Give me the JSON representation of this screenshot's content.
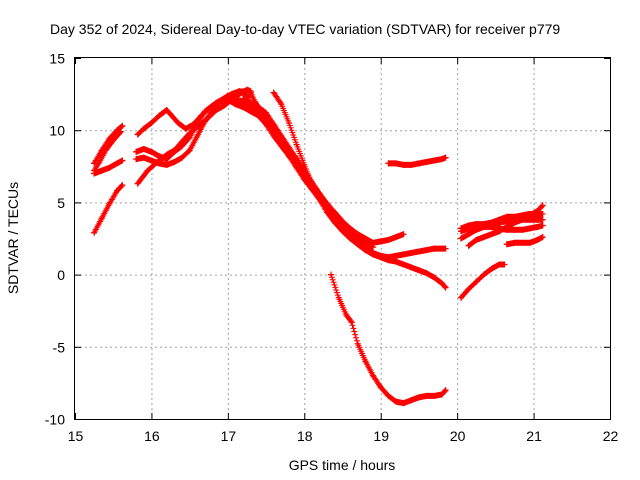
{
  "chart_data": {
    "type": "scatter",
    "title": "Day 352 of 2024, Sidereal Day-to-day VTEC variation (SDTVAR) for receiver p779",
    "xlabel": "GPS time / hours",
    "ylabel": "SDTVAR / TECUs",
    "xlim": [
      15,
      22
    ],
    "ylim": [
      -10,
      15
    ],
    "x_ticks": [
      "15",
      "16",
      "17",
      "18",
      "19",
      "20",
      "21",
      "22"
    ],
    "y_ticks": [
      "15",
      "10",
      "5",
      "0",
      "-5",
      "-10"
    ],
    "grid": true,
    "marker": "plus",
    "color": "#ff0000",
    "series": [
      {
        "name": "s1",
        "x": [
          15.25,
          15.35,
          15.45,
          15.55,
          15.62
        ],
        "y": [
          2.9,
          3.9,
          4.9,
          5.8,
          6.2
        ]
      },
      {
        "name": "s2",
        "x": [
          15.25,
          15.35,
          15.45,
          15.55,
          15.62
        ],
        "y": [
          7.0,
          7.2,
          7.4,
          7.7,
          7.9
        ]
      },
      {
        "name": "s3",
        "x": [
          15.25,
          15.32,
          15.4,
          15.5,
          15.6
        ],
        "y": [
          7.2,
          7.8,
          8.6,
          9.3,
          9.9
        ]
      },
      {
        "name": "s4",
        "x": [
          15.25,
          15.35,
          15.45,
          15.55,
          15.62
        ],
        "y": [
          7.7,
          8.6,
          9.4,
          10.0,
          10.3
        ]
      },
      {
        "name": "s5",
        "x": [
          15.82,
          15.95,
          16.1,
          16.2,
          16.3,
          16.4,
          16.5,
          16.62,
          16.75,
          16.85,
          16.95,
          17.05,
          17.15,
          17.25,
          17.3
        ],
        "y": [
          6.3,
          7.2,
          7.9,
          8.3,
          8.6,
          9.2,
          9.8,
          10.3,
          10.9,
          11.4,
          11.7,
          12.1,
          12.5,
          12.8,
          12.7
        ]
      },
      {
        "name": "s6",
        "x": [
          15.82,
          15.9,
          16.0,
          16.1,
          16.2,
          16.25,
          16.35,
          16.45,
          16.55,
          16.65,
          16.75,
          16.85,
          16.95,
          17.05,
          17.15,
          17.25
        ],
        "y": [
          9.7,
          10.1,
          10.5,
          11.0,
          11.4,
          11.1,
          10.5,
          10.1,
          10.4,
          11.0,
          11.5,
          11.9,
          12.2,
          12.5,
          12.7,
          12.6
        ]
      },
      {
        "name": "s7",
        "x": [
          15.8,
          15.9,
          16.0,
          16.1,
          16.2,
          16.3,
          16.4,
          16.5,
          16.6,
          16.7,
          16.8,
          16.9,
          17.0,
          17.1,
          17.2,
          17.3,
          17.4,
          17.5,
          17.6,
          17.7,
          17.8,
          17.9,
          18.0,
          18.1,
          18.2,
          18.3,
          18.4,
          18.5,
          18.6,
          18.7,
          18.8,
          18.9,
          19.0,
          19.1,
          19.2,
          19.3,
          19.4,
          19.5,
          19.6,
          19.7,
          19.8,
          19.85
        ],
        "y": [
          8.5,
          8.7,
          8.5,
          8.2,
          8.0,
          8.5,
          8.9,
          9.5,
          10.5,
          11.3,
          11.7,
          12.0,
          12.1,
          11.8,
          11.6,
          11.3,
          11.0,
          10.4,
          9.6,
          8.9,
          8.2,
          7.4,
          6.6,
          5.9,
          5.2,
          4.5,
          3.8,
          3.1,
          2.6,
          2.1,
          1.7,
          1.4,
          1.2,
          1.0,
          0.9,
          0.7,
          0.5,
          0.3,
          0.1,
          -0.2,
          -0.6,
          -0.9
        ]
      },
      {
        "name": "s8",
        "x": [
          15.8,
          15.9,
          16.0,
          16.1,
          16.2,
          16.3,
          16.4,
          16.5,
          16.6,
          16.7,
          16.8,
          16.9,
          17.0,
          17.1,
          17.2,
          17.3,
          17.4,
          17.5,
          17.6,
          17.7,
          17.8,
          17.9,
          18.0,
          18.1,
          18.2,
          18.3,
          18.4,
          18.5,
          18.6,
          18.7,
          18.8,
          18.9,
          19.0,
          19.1,
          19.2,
          19.3,
          19.4,
          19.5,
          19.6,
          19.7,
          19.8,
          19.85
        ],
        "y": [
          8.0,
          8.1,
          7.9,
          7.7,
          7.6,
          7.8,
          8.1,
          8.6,
          9.6,
          10.6,
          11.4,
          12.0,
          12.4,
          12.2,
          11.9,
          11.6,
          11.2,
          10.6,
          9.8,
          9.0,
          8.3,
          7.6,
          6.9,
          6.1,
          5.4,
          4.7,
          4.0,
          3.4,
          2.8,
          2.3,
          1.8,
          1.5,
          1.3,
          1.2,
          1.3,
          1.4,
          1.5,
          1.6,
          1.7,
          1.8,
          1.8,
          1.8
        ]
      },
      {
        "name": "s9",
        "x": [
          17.2,
          17.3,
          17.4,
          17.5,
          17.6,
          17.7,
          17.8,
          17.9,
          18.0,
          18.1,
          18.2,
          18.3,
          18.4,
          18.5,
          18.6,
          18.7,
          18.8,
          18.9,
          19.0,
          19.1,
          19.2,
          19.3
        ],
        "y": [
          12.2,
          11.9,
          11.5,
          11.0,
          10.3,
          9.5,
          8.7,
          8.0,
          7.2,
          6.4,
          5.6,
          4.9,
          4.3,
          3.7,
          3.2,
          2.8,
          2.5,
          2.2,
          2.3,
          2.4,
          2.6,
          2.8
        ]
      },
      {
        "name": "s10",
        "x": [
          17.2,
          17.25,
          17.3,
          17.35,
          17.4,
          17.5,
          17.6,
          17.7,
          17.8,
          17.9,
          18.0,
          18.1,
          18.2,
          18.3,
          18.4,
          18.5,
          18.6,
          18.7,
          18.8,
          18.9
        ],
        "y": [
          12.7,
          12.1,
          12.6,
          12.0,
          11.6,
          11.2,
          10.4,
          9.6,
          8.8,
          8.0,
          7.1,
          6.3,
          5.6,
          4.8,
          4.1,
          3.5,
          3.0,
          2.6,
          2.2,
          1.9
        ]
      },
      {
        "name": "s11",
        "x": [
          17.6,
          17.7,
          17.8,
          17.9,
          18.0,
          18.1,
          18.2,
          18.3,
          18.4,
          18.5,
          18.6,
          18.7,
          18.8,
          18.9
        ],
        "y": [
          12.6,
          11.8,
          10.5,
          9.0,
          7.6,
          6.3,
          5.2,
          4.3,
          3.6,
          3.0,
          2.5,
          2.1,
          1.7,
          1.4
        ]
      },
      {
        "name": "s12",
        "x": [
          19.1,
          19.2,
          19.3,
          19.4,
          19.5,
          19.6,
          19.7,
          19.8,
          19.85
        ],
        "y": [
          7.7,
          7.7,
          7.6,
          7.6,
          7.7,
          7.8,
          7.9,
          8.0,
          8.1
        ]
      },
      {
        "name": "s13",
        "x": [
          18.35,
          18.45,
          18.55,
          18.62,
          18.7,
          18.8,
          18.9,
          19.0,
          19.1,
          19.2,
          19.3,
          19.4,
          19.5,
          19.6,
          19.7,
          19.8,
          19.85
        ],
        "y": [
          0.0,
          -1.6,
          -2.8,
          -3.3,
          -4.8,
          -6.0,
          -7.0,
          -7.8,
          -8.4,
          -8.8,
          -8.9,
          -8.7,
          -8.5,
          -8.4,
          -8.4,
          -8.3,
          -8.0
        ]
      },
      {
        "name": "s14",
        "x": [
          20.05,
          20.15,
          20.25,
          20.35,
          20.45,
          20.55,
          20.62
        ],
        "y": [
          -1.6,
          -1.0,
          -0.5,
          0.0,
          0.4,
          0.7,
          0.7
        ]
      },
      {
        "name": "s15",
        "x": [
          20.65,
          20.75,
          20.85,
          20.95,
          21.05,
          21.12
        ],
        "y": [
          2.1,
          2.2,
          2.2,
          2.2,
          2.4,
          2.6
        ]
      },
      {
        "name": "s16",
        "x": [
          20.05,
          20.15,
          20.25,
          20.35,
          20.45,
          20.55,
          20.65,
          20.75,
          20.85,
          20.95,
          21.05,
          21.12
        ],
        "y": [
          2.5,
          2.8,
          3.1,
          3.3,
          3.3,
          3.2,
          3.1,
          3.1,
          3.1,
          3.2,
          3.3,
          3.4
        ]
      },
      {
        "name": "s17",
        "x": [
          20.05,
          20.15,
          20.25,
          20.35,
          20.45,
          20.55,
          20.65,
          20.75,
          20.85,
          20.95,
          21.05,
          21.12
        ],
        "y": [
          3.0,
          3.2,
          3.3,
          3.4,
          3.5,
          3.6,
          3.7,
          3.8,
          3.8,
          3.8,
          3.8,
          3.8
        ]
      },
      {
        "name": "s18",
        "x": [
          20.05,
          20.15,
          20.25,
          20.35,
          20.45,
          20.55,
          20.65,
          20.75,
          20.85,
          20.95,
          21.05,
          21.12
        ],
        "y": [
          3.2,
          3.4,
          3.5,
          3.5,
          3.6,
          3.8,
          4.0,
          4.0,
          4.1,
          4.2,
          4.2,
          4.2
        ]
      },
      {
        "name": "s19",
        "x": [
          20.15,
          20.25,
          20.35,
          20.45,
          20.55,
          20.65,
          20.75,
          20.85,
          20.95,
          21.05,
          21.12
        ],
        "y": [
          2.0,
          2.4,
          2.6,
          2.8,
          3.0,
          3.3,
          3.6,
          3.8,
          4.1,
          4.4,
          4.8
        ]
      }
    ]
  }
}
